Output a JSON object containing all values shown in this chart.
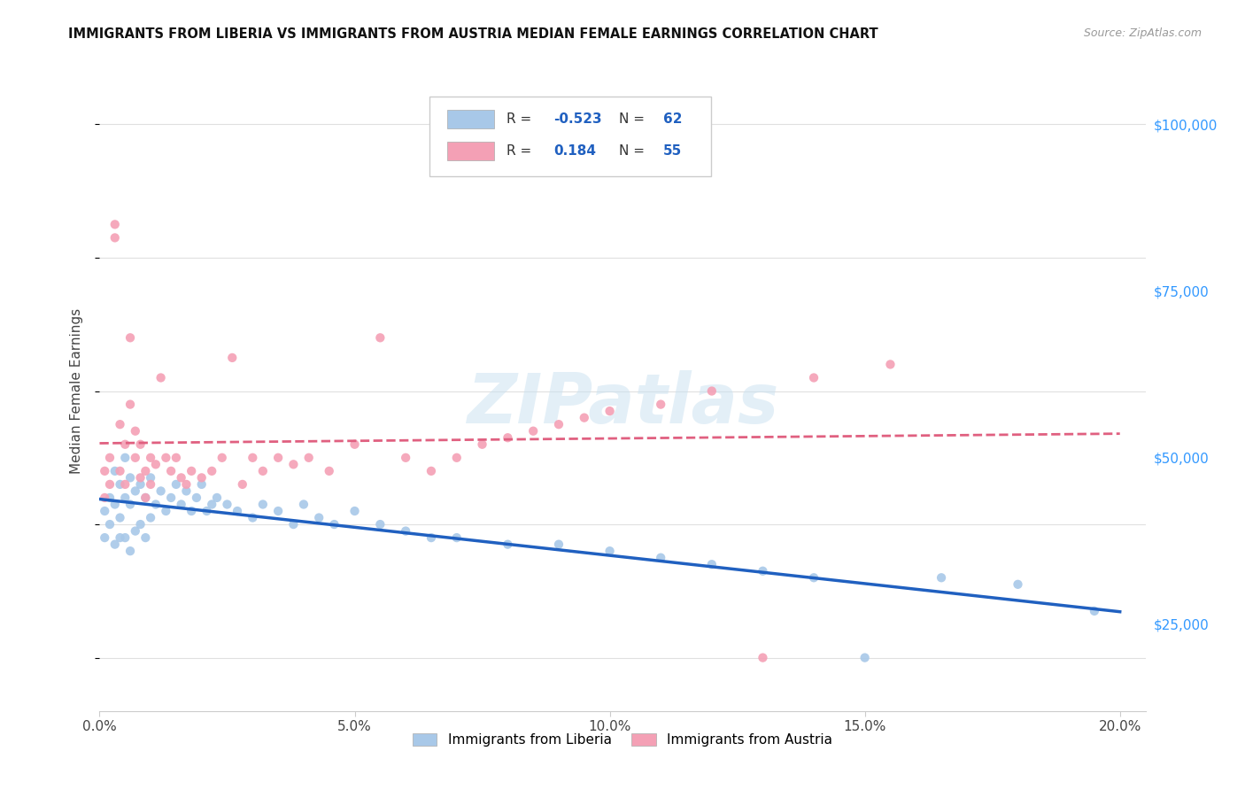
{
  "title": "IMMIGRANTS FROM LIBERIA VS IMMIGRANTS FROM AUSTRIA MEDIAN FEMALE EARNINGS CORRELATION CHART",
  "source": "Source: ZipAtlas.com",
  "xlabel_ticks": [
    "0.0%",
    "5.0%",
    "10.0%",
    "15.0%",
    "20.0%"
  ],
  "xlabel_tick_vals": [
    0.0,
    0.05,
    0.1,
    0.15,
    0.2
  ],
  "ylabel": "Median Female Earnings",
  "ylabel_right_ticks": [
    "$25,000",
    "$50,000",
    "$75,000",
    "$100,000"
  ],
  "ylabel_right_vals": [
    25000,
    50000,
    75000,
    100000
  ],
  "xlim": [
    0.0,
    0.205
  ],
  "ylim": [
    12000,
    108000
  ],
  "liberia_color": "#a8c8e8",
  "austria_color": "#f4a0b5",
  "liberia_line_color": "#2060c0",
  "austria_line_color": "#e06080",
  "liberia_R": -0.523,
  "liberia_N": 62,
  "austria_R": 0.184,
  "austria_N": 55,
  "legend_label_1": "Immigrants from Liberia",
  "legend_label_2": "Immigrants from Austria",
  "watermark": "ZIPatlas",
  "liberia_x": [
    0.001,
    0.001,
    0.002,
    0.002,
    0.003,
    0.003,
    0.003,
    0.004,
    0.004,
    0.004,
    0.005,
    0.005,
    0.005,
    0.006,
    0.006,
    0.006,
    0.007,
    0.007,
    0.008,
    0.008,
    0.009,
    0.009,
    0.01,
    0.01,
    0.011,
    0.012,
    0.013,
    0.014,
    0.015,
    0.016,
    0.017,
    0.018,
    0.019,
    0.02,
    0.021,
    0.022,
    0.023,
    0.025,
    0.027,
    0.03,
    0.032,
    0.035,
    0.038,
    0.04,
    0.043,
    0.046,
    0.05,
    0.055,
    0.06,
    0.065,
    0.07,
    0.08,
    0.09,
    0.1,
    0.11,
    0.12,
    0.13,
    0.14,
    0.15,
    0.165,
    0.18,
    0.195
  ],
  "liberia_y": [
    42000,
    38000,
    44000,
    40000,
    48000,
    43000,
    37000,
    46000,
    41000,
    38000,
    50000,
    44000,
    38000,
    47000,
    43000,
    36000,
    45000,
    39000,
    46000,
    40000,
    44000,
    38000,
    47000,
    41000,
    43000,
    45000,
    42000,
    44000,
    46000,
    43000,
    45000,
    42000,
    44000,
    46000,
    42000,
    43000,
    44000,
    43000,
    42000,
    41000,
    43000,
    42000,
    40000,
    43000,
    41000,
    40000,
    42000,
    40000,
    39000,
    38000,
    38000,
    37000,
    37000,
    36000,
    35000,
    34000,
    33000,
    32000,
    20000,
    32000,
    31000,
    27000
  ],
  "austria_x": [
    0.001,
    0.001,
    0.002,
    0.002,
    0.003,
    0.003,
    0.004,
    0.004,
    0.005,
    0.005,
    0.006,
    0.006,
    0.007,
    0.007,
    0.008,
    0.008,
    0.009,
    0.009,
    0.01,
    0.01,
    0.011,
    0.012,
    0.013,
    0.014,
    0.015,
    0.016,
    0.017,
    0.018,
    0.02,
    0.022,
    0.024,
    0.026,
    0.028,
    0.03,
    0.032,
    0.035,
    0.038,
    0.041,
    0.045,
    0.05,
    0.055,
    0.06,
    0.065,
    0.07,
    0.075,
    0.08,
    0.085,
    0.09,
    0.095,
    0.1,
    0.11,
    0.12,
    0.13,
    0.14,
    0.155
  ],
  "austria_y": [
    48000,
    44000,
    50000,
    46000,
    85000,
    83000,
    55000,
    48000,
    52000,
    46000,
    68000,
    58000,
    54000,
    50000,
    52000,
    47000,
    48000,
    44000,
    50000,
    46000,
    49000,
    62000,
    50000,
    48000,
    50000,
    47000,
    46000,
    48000,
    47000,
    48000,
    50000,
    65000,
    46000,
    50000,
    48000,
    50000,
    49000,
    50000,
    48000,
    52000,
    68000,
    50000,
    48000,
    50000,
    52000,
    53000,
    54000,
    55000,
    56000,
    57000,
    58000,
    60000,
    20000,
    62000,
    64000
  ]
}
